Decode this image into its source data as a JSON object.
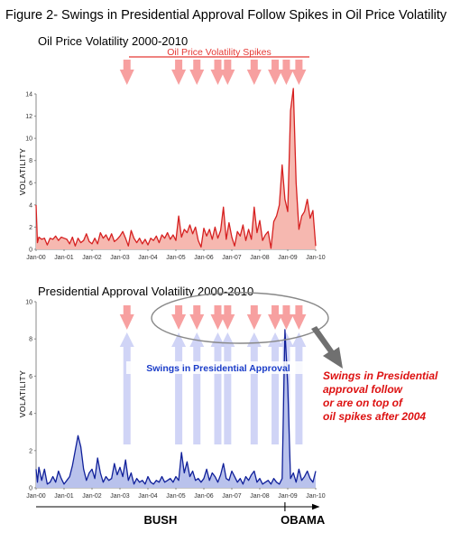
{
  "figure_title": "Figure 2- Swings in Presidential Approval Follow Spikes in Oil Price Volatility",
  "colors": {
    "oil_line": "#d62020",
    "oil_fill": "#f6b8b0",
    "approval_line": "#10209a",
    "approval_fill": "#b9c2ec",
    "arrow_red": "#f7a0a0",
    "arrow_blue": "#c8ccf4",
    "callout_text": "#dd1111",
    "callout_arrow": "#707070"
  },
  "x_ticks": [
    "Jan-00",
    "Jan-01",
    "Jan-02",
    "Jan-03",
    "Jan-04",
    "Jan-05",
    "Jan-06",
    "Jan-07",
    "Jan-08",
    "Jan-09",
    "Jan-10"
  ],
  "spike_dates": [
    2003.25,
    2005.1,
    2005.75,
    2006.5,
    2006.85,
    2007.8,
    2008.55,
    2008.95,
    2009.4
  ],
  "annotations": {
    "oil_spikes_label": "Oil Price Volatility Spikes",
    "swings_label": "Swings in Presidential Approval",
    "callout_lines": [
      "Swings in Presidential",
      "approval follow",
      "or are on top of",
      "oil spikes after 2004"
    ],
    "eras": [
      {
        "label": "BUSH",
        "start": 2000.0,
        "end": 2008.9
      },
      {
        "label": "OBAMA",
        "start": 2008.9,
        "end": 2010.05
      }
    ]
  },
  "chart_data": [
    {
      "type": "area",
      "title": "Oil Price Volatility 2000-2010",
      "xlabel": "",
      "ylabel": "VOLATILITY",
      "ylim": [
        0,
        14
      ],
      "xlim": [
        2000,
        2010
      ],
      "yticks": [
        0,
        2,
        4,
        6,
        8,
        10,
        12,
        14
      ],
      "grid": false,
      "series": [
        {
          "x": [
            2000.0,
            2000.05,
            2000.1,
            2000.2,
            2000.3,
            2000.4,
            2000.5,
            2000.6,
            2000.7,
            2000.8,
            2000.9,
            2001.0,
            2001.1,
            2001.2,
            2001.3,
            2001.4,
            2001.5,
            2001.6,
            2001.7,
            2001.8,
            2001.9,
            2002.0,
            2002.1,
            2002.2,
            2002.3,
            2002.4,
            2002.5,
            2002.6,
            2002.7,
            2002.8,
            2002.9,
            2003.0,
            2003.1,
            2003.2,
            2003.3,
            2003.4,
            2003.5,
            2003.6,
            2003.7,
            2003.8,
            2003.9,
            2004.0,
            2004.1,
            2004.2,
            2004.3,
            2004.4,
            2004.5,
            2004.6,
            2004.7,
            2004.8,
            2004.9,
            2005.0,
            2005.1,
            2005.2,
            2005.3,
            2005.4,
            2005.5,
            2005.6,
            2005.7,
            2005.8,
            2005.9,
            2006.0,
            2006.1,
            2006.2,
            2006.3,
            2006.4,
            2006.5,
            2006.6,
            2006.7,
            2006.8,
            2006.9,
            2007.0,
            2007.1,
            2007.2,
            2007.3,
            2007.4,
            2007.5,
            2007.6,
            2007.7,
            2007.8,
            2007.9,
            2008.0,
            2008.1,
            2008.2,
            2008.3,
            2008.4,
            2008.5,
            2008.6,
            2008.7,
            2008.8,
            2008.9,
            2009.0,
            2009.1,
            2009.2,
            2009.3,
            2009.4,
            2009.5,
            2009.6,
            2009.7,
            2009.8,
            2009.9,
            2010.0
          ],
          "y": [
            4.0,
            0.6,
            1.1,
            0.9,
            1.0,
            0.4,
            1.0,
            0.9,
            1.2,
            0.8,
            1.1,
            1.0,
            0.9,
            0.5,
            1.1,
            0.3,
            1.0,
            0.6,
            0.8,
            1.4,
            0.7,
            0.5,
            1.0,
            0.5,
            1.5,
            1.0,
            1.3,
            0.8,
            1.4,
            0.7,
            0.9,
            1.2,
            1.6,
            1.0,
            0.3,
            1.7,
            1.0,
            0.6,
            1.0,
            0.5,
            0.9,
            0.4,
            1.0,
            0.8,
            1.2,
            0.6,
            1.3,
            1.0,
            1.5,
            0.9,
            1.3,
            0.8,
            3.0,
            1.1,
            1.8,
            1.5,
            2.2,
            1.4,
            2.0,
            0.8,
            0.2,
            1.9,
            1.2,
            1.8,
            0.9,
            2.0,
            1.0,
            1.7,
            3.8,
            0.9,
            2.4,
            1.1,
            0.3,
            1.6,
            1.2,
            2.2,
            0.8,
            1.8,
            0.9,
            3.8,
            1.5,
            2.6,
            0.8,
            1.3,
            1.6,
            0.1,
            2.5,
            3.0,
            4.0,
            7.6,
            4.5,
            3.4,
            12.5,
            14.5,
            6.0,
            1.8,
            3.0,
            3.4,
            4.5,
            2.8,
            3.5,
            0.3
          ]
        }
      ]
    },
    {
      "type": "area",
      "title": "Presidential Approval Volatility 2000-2010",
      "xlabel": "",
      "ylabel": "VOLATILITY",
      "ylim": [
        0,
        10
      ],
      "xlim": [
        2000,
        2010
      ],
      "yticks": [
        0,
        2,
        4,
        6,
        8,
        10
      ],
      "grid": false,
      "series": [
        {
          "x": [
            2000.0,
            2000.05,
            2000.1,
            2000.2,
            2000.3,
            2000.4,
            2000.5,
            2000.6,
            2000.7,
            2000.8,
            2000.9,
            2001.0,
            2001.1,
            2001.2,
            2001.3,
            2001.4,
            2001.5,
            2001.6,
            2001.7,
            2001.8,
            2001.9,
            2002.0,
            2002.1,
            2002.2,
            2002.3,
            2002.4,
            2002.5,
            2002.6,
            2002.7,
            2002.8,
            2002.9,
            2003.0,
            2003.1,
            2003.2,
            2003.3,
            2003.4,
            2003.5,
            2003.6,
            2003.7,
            2003.8,
            2003.9,
            2004.0,
            2004.1,
            2004.2,
            2004.3,
            2004.4,
            2004.5,
            2004.6,
            2004.7,
            2004.8,
            2004.9,
            2005.0,
            2005.1,
            2005.2,
            2005.3,
            2005.4,
            2005.5,
            2005.6,
            2005.7,
            2005.8,
            2005.9,
            2006.0,
            2006.1,
            2006.2,
            2006.3,
            2006.4,
            2006.5,
            2006.6,
            2006.7,
            2006.8,
            2006.9,
            2007.0,
            2007.1,
            2007.2,
            2007.3,
            2007.4,
            2007.5,
            2007.6,
            2007.7,
            2007.8,
            2007.9,
            2008.0,
            2008.1,
            2008.2,
            2008.3,
            2008.4,
            2008.5,
            2008.6,
            2008.7,
            2008.8,
            2008.9,
            2009.0,
            2009.1,
            2009.2,
            2009.3,
            2009.4,
            2009.5,
            2009.6,
            2009.7,
            2009.8,
            2009.9,
            2010.0
          ],
          "y": [
            1.0,
            0.3,
            1.1,
            0.4,
            1.0,
            0.2,
            0.3,
            0.6,
            0.3,
            0.9,
            0.5,
            0.2,
            0.4,
            0.6,
            1.2,
            2.0,
            2.8,
            2.2,
            1.0,
            0.4,
            0.8,
            1.0,
            0.5,
            1.6,
            0.8,
            0.3,
            0.6,
            0.4,
            0.5,
            1.3,
            0.7,
            1.1,
            0.6,
            1.5,
            0.4,
            0.8,
            0.2,
            0.5,
            0.3,
            0.4,
            0.2,
            0.6,
            0.3,
            0.2,
            0.4,
            0.3,
            0.6,
            0.3,
            0.4,
            0.5,
            0.3,
            0.6,
            0.4,
            1.9,
            0.8,
            1.4,
            0.6,
            0.9,
            0.4,
            0.5,
            0.3,
            0.5,
            1.0,
            0.4,
            0.8,
            0.6,
            0.3,
            0.7,
            1.3,
            0.5,
            0.4,
            0.9,
            0.6,
            0.3,
            0.5,
            0.2,
            0.6,
            0.4,
            0.7,
            0.9,
            0.3,
            0.5,
            0.2,
            0.3,
            0.4,
            0.2,
            0.5,
            0.3,
            0.2,
            0.5,
            8.5,
            5.5,
            0.5,
            0.8,
            0.3,
            1.0,
            0.4,
            0.6,
            0.9,
            0.5,
            0.3,
            0.9
          ]
        }
      ]
    }
  ]
}
